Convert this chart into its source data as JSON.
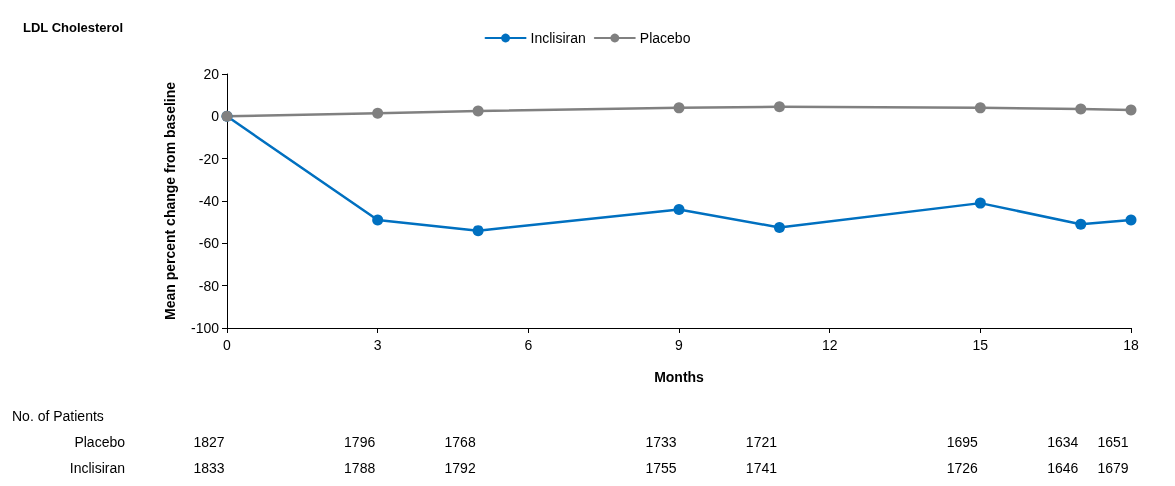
{
  "chart_data": {
    "type": "line",
    "title": "LDL Cholesterol",
    "xlabel": "Months",
    "ylabel": "Mean percent change from baseline",
    "x": [
      0,
      3,
      5,
      9,
      11,
      15,
      17,
      18
    ],
    "series": [
      {
        "name": "Inclisiran",
        "color": "#0070c0",
        "values": [
          0,
          -49,
          -54,
          -44,
          -52.5,
          -41,
          -51,
          -49
        ]
      },
      {
        "name": "Placebo",
        "color": "#808080",
        "values": [
          0,
          1.5,
          2.5,
          4,
          4.5,
          4,
          3.5,
          3
        ]
      }
    ],
    "xlim": [
      0,
      18
    ],
    "xticks": [
      0,
      3,
      6,
      9,
      12,
      15,
      18
    ],
    "ylim": [
      -100,
      20
    ],
    "yticks": [
      -100,
      -80,
      -60,
      -40,
      -20,
      0,
      20
    ],
    "grid": false,
    "legend": "top",
    "marker": "circle",
    "line_style": "solid",
    "annotations": [
      "No. of Patients",
      "Placebo",
      "1827",
      "1796",
      "1768",
      "1733",
      "1721",
      "1695",
      "1634",
      "1651",
      "Inclisiran",
      "1833",
      "1788",
      "1792",
      "1755",
      "1741",
      "1726",
      "1646",
      "1679"
    ]
  }
}
